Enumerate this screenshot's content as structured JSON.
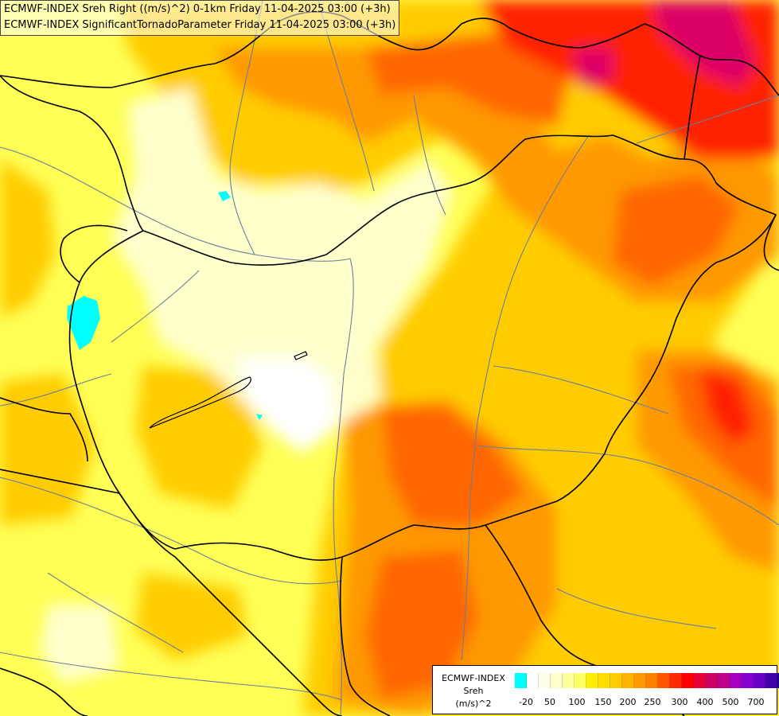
{
  "titles": {
    "line1": "ECMWF-INDEX Sreh Right ((m/s)^2) 0-1km Friday 11-04-2025 03:00 (+3h)",
    "line2": "ECMWF-INDEX SignificantTornadoParameter Friday 11-04-2025 03:00 (+3h)"
  },
  "legend": {
    "model": "ECMWF-INDEX",
    "variable": "Sreh",
    "unit": "(m/s)^2",
    "swatch_colors": [
      "#00ffff",
      "#ffffff",
      "#fffde8",
      "#ffffcc",
      "#ffff99",
      "#ffff66",
      "#ffee00",
      "#ffdd00",
      "#ffcc00",
      "#ffb300",
      "#ff9900",
      "#ff7f00",
      "#ff5500",
      "#ff2a00",
      "#ff0000",
      "#e60033",
      "#cc0066",
      "#c0008a",
      "#a800c0",
      "#8800d0",
      "#6a00c8",
      "#4000a8",
      "#20008a",
      "#000080"
    ],
    "ticks": [
      "-20",
      "50",
      "100",
      "150",
      "200",
      "250",
      "300",
      "400",
      "500",
      "700"
    ]
  },
  "colors": {
    "pale": "#ffffcc",
    "yellow": "#ffff44",
    "light_orange": "#ffcc00",
    "orange": "#ff9900",
    "dark_orange": "#ff6600",
    "red": "#ff2200",
    "magenta": "#dd0066",
    "cyan": "#00ffff",
    "border": "#000000",
    "river": "#6a7f9a"
  }
}
